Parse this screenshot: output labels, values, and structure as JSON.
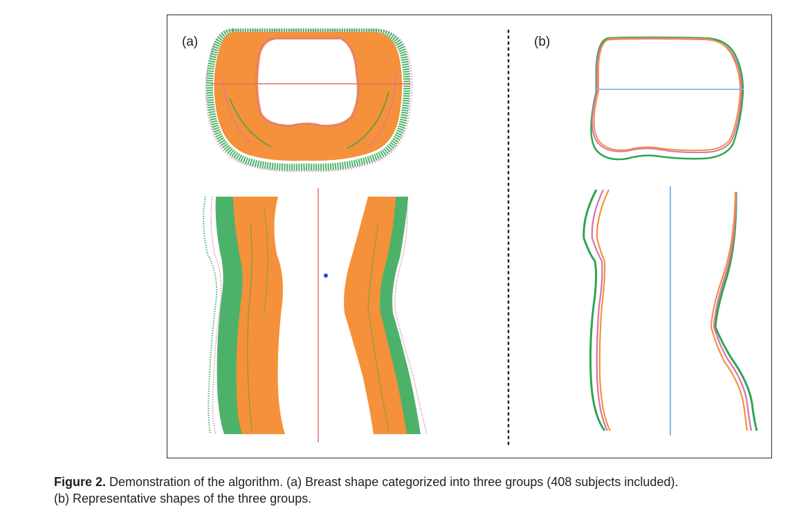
{
  "figure": {
    "panel_a_label": "(a)",
    "panel_b_label": "(b)",
    "caption_label": "Figure 2.",
    "caption_line1": " Demonstration of the algorithm. (a) Breast shape categorized into three groups (408 subjects included).",
    "caption_line2": "(b) Representative shapes of the three groups."
  },
  "colors": {
    "orange": "#f4913a",
    "green": "#2ea44f",
    "pink": "#d96fb0",
    "red_line": "#e86a6a",
    "blue_line": "#7fb7e8",
    "blue_dot": "#1f4fd1",
    "frame": "#2b2b2b"
  },
  "icons": {
    "centroid": "blue-dot-icon"
  }
}
